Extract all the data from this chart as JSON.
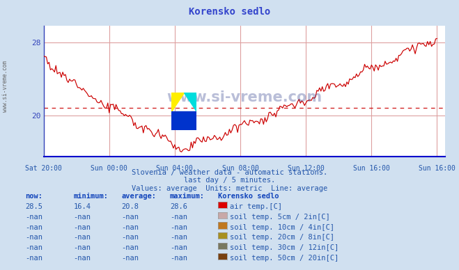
{
  "title": "Korensko sedlo",
  "background_color": "#d0e0f0",
  "plot_bg_color": "#ffffff",
  "grid_color": "#dda0a0",
  "line_color": "#cc0000",
  "avg_line_value": 20.8,
  "title_color": "#3344cc",
  "text_color": "#2255aa",
  "y_ticks": [
    20,
    28
  ],
  "x_tick_labels": [
    "Sat 20:00",
    "Sun 00:00",
    "Sun 04:00",
    "Sun 08:00",
    "Sun 12:00",
    "Sun 16:00"
  ],
  "x_tick_positions": [
    -4,
    0,
    4,
    8,
    12,
    16
  ],
  "footer_line1": "Slovenia / weather data - automatic stations.",
  "footer_line2": "last day / 5 minutes.",
  "footer_line3": "Values: average  Units: metric  Line: average",
  "watermark": "www.si-vreme.com",
  "sidebar_text": "www.si-vreme.com",
  "legend_items": [
    {
      "label": "air temp.[C]",
      "color": "#dd0000"
    },
    {
      "label": "soil temp. 5cm / 2in[C]",
      "color": "#c8a8a8"
    },
    {
      "label": "soil temp. 10cm / 4in[C]",
      "color": "#c07820"
    },
    {
      "label": "soil temp. 20cm / 8in[C]",
      "color": "#a89020"
    },
    {
      "label": "soil temp. 30cm / 12in[C]",
      "color": "#787860"
    },
    {
      "label": "soil temp. 50cm / 20in[C]",
      "color": "#784010"
    }
  ],
  "col_headers": [
    "now:",
    "minimum:",
    "average:",
    "maximum:",
    "Korensko sedlo"
  ],
  "row_data": [
    [
      "28.5",
      "16.4",
      "20.8",
      "28.6"
    ],
    [
      "-nan",
      "-nan",
      "-nan",
      "-nan"
    ],
    [
      "-nan",
      "-nan",
      "-nan",
      "-nan"
    ],
    [
      "-nan",
      "-nan",
      "-nan",
      "-nan"
    ],
    [
      "-nan",
      "-nan",
      "-nan",
      "-nan"
    ],
    [
      "-nan",
      "-nan",
      "-nan",
      "-nan"
    ]
  ]
}
